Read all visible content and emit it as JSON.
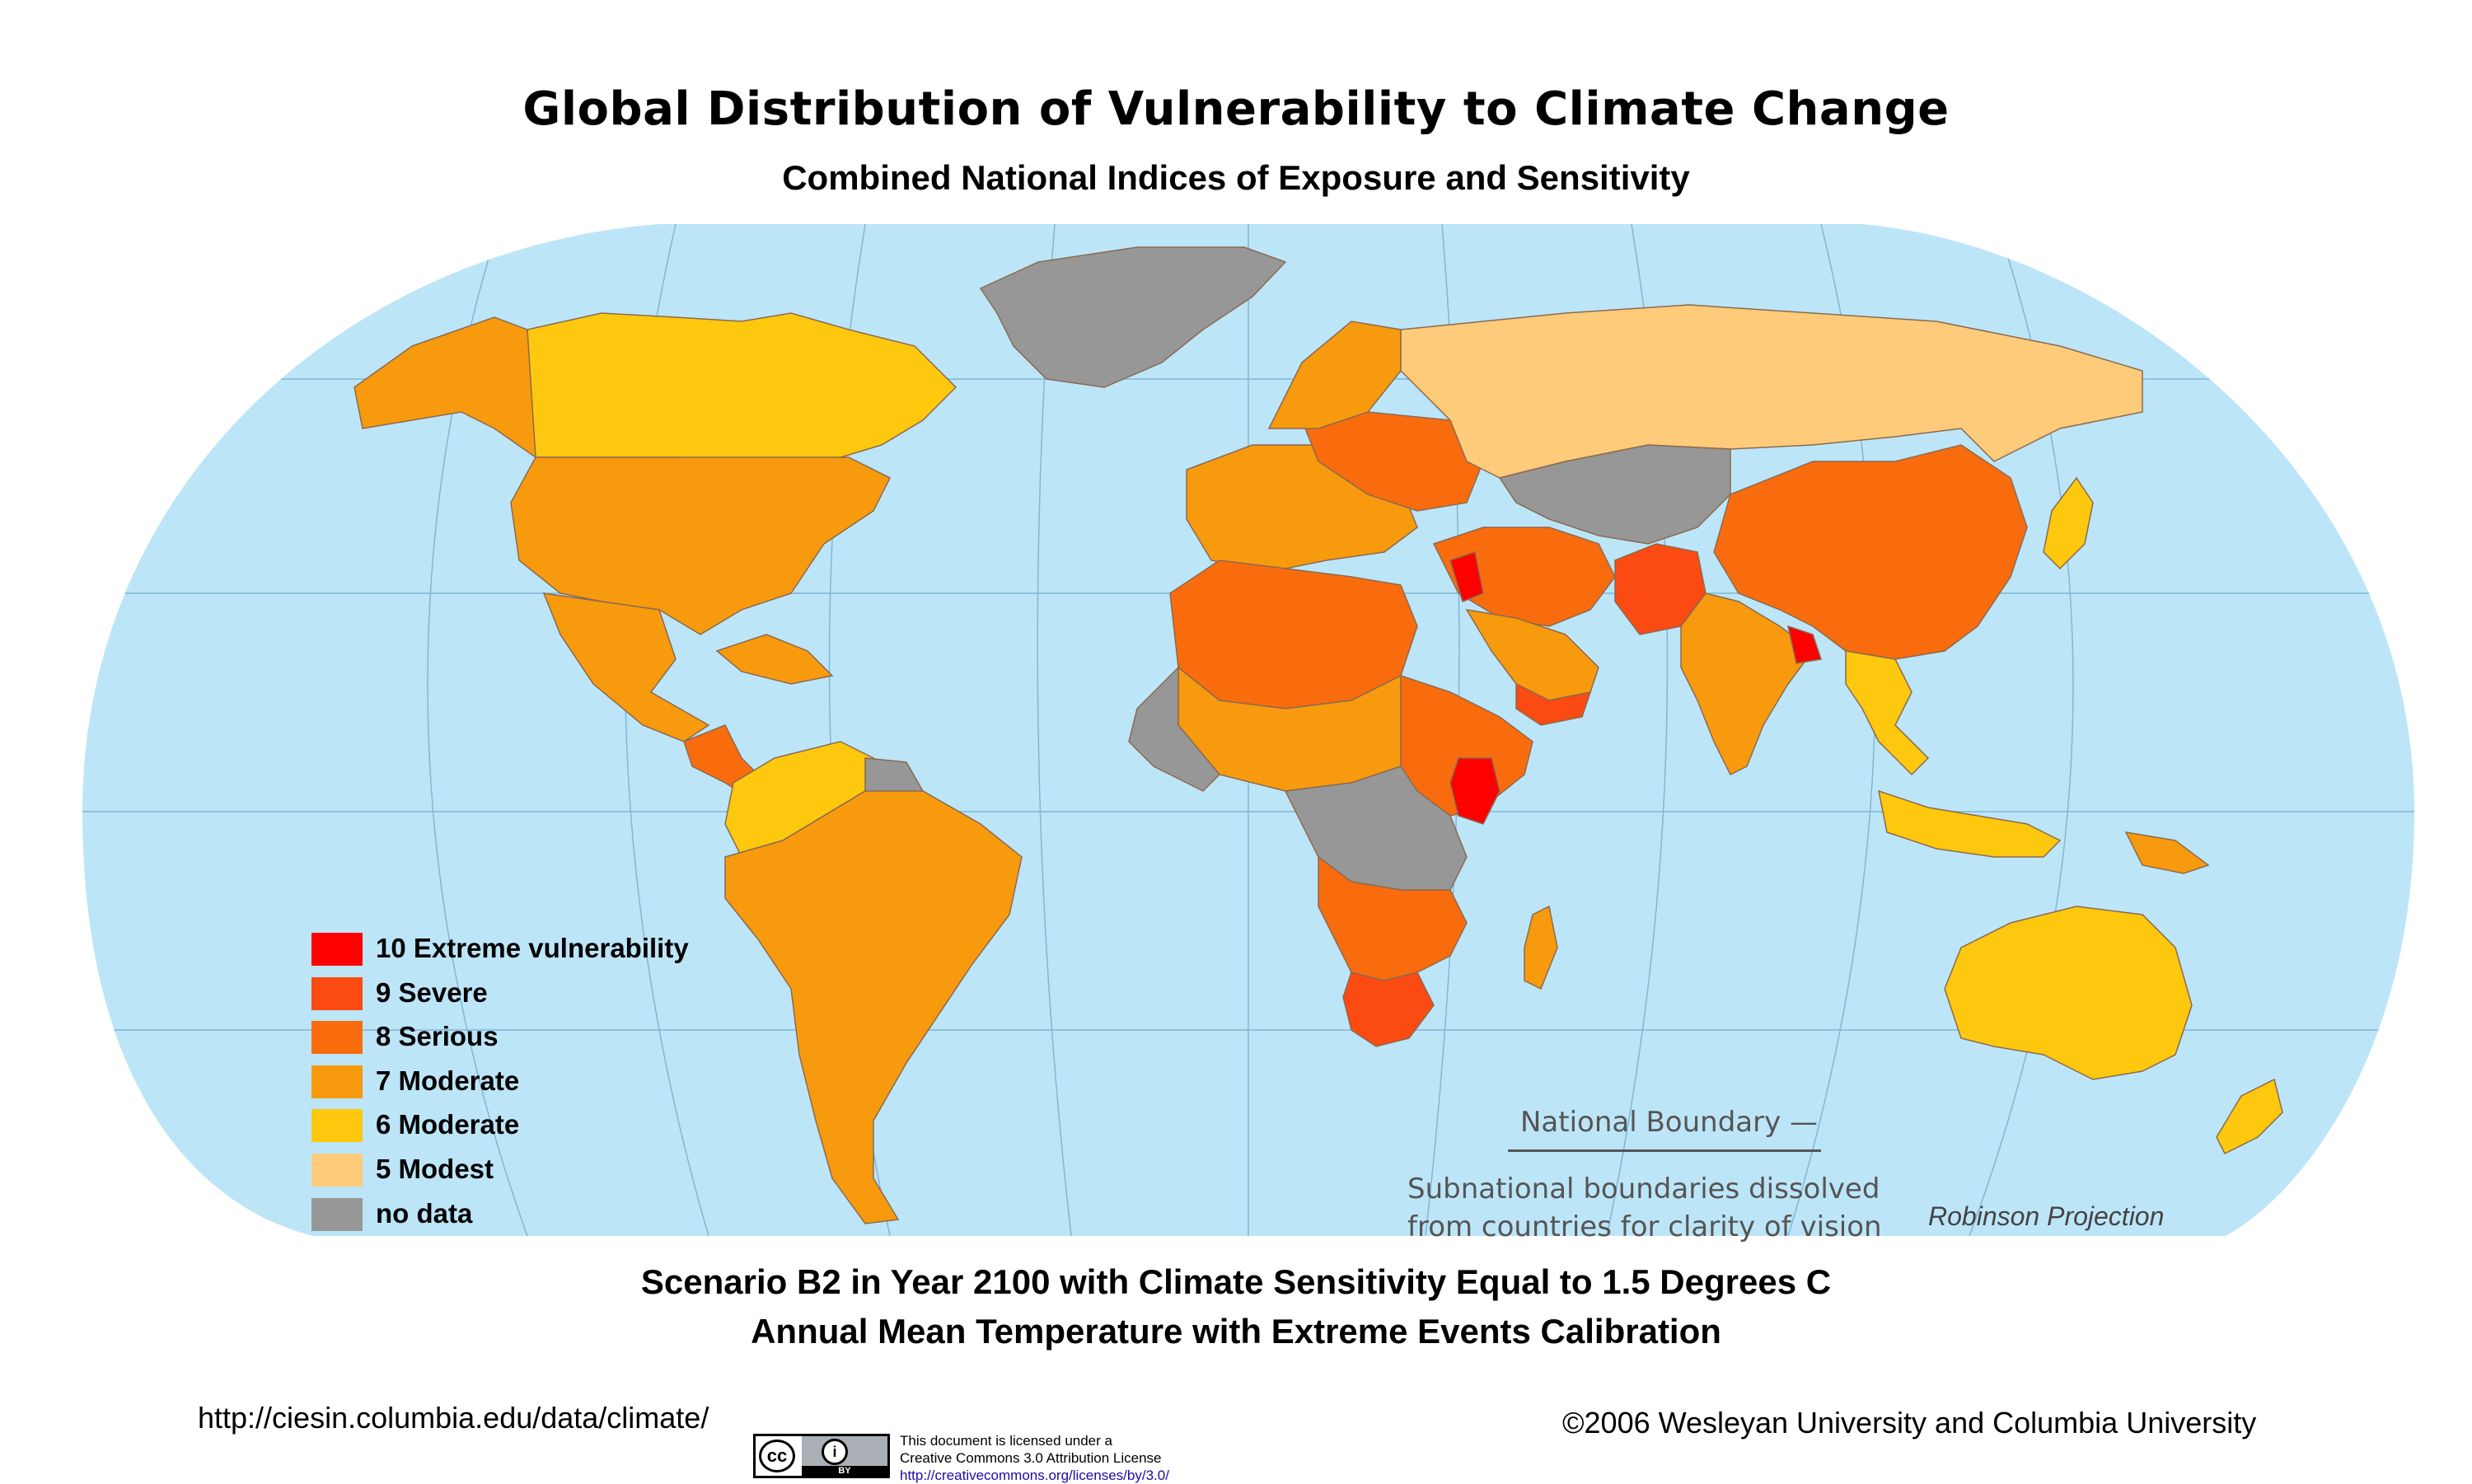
{
  "title": "Global Distribution of Vulnerability to Climate Change",
  "subtitle": "Combined National Indices of Exposure and Sensitivity",
  "colors": {
    "ocean": "#bde5f8",
    "graticule": "#7fb7d6",
    "v10": "#ff0000",
    "v9": "#fb4a12",
    "v8": "#f96c0e",
    "v7": "#f89a0e",
    "v6": "#fdc80d",
    "v5": "#fdcb7a",
    "nodata": "#979797"
  },
  "legend": [
    {
      "label": "10 Extreme vulnerability",
      "color": "#ff0000"
    },
    {
      "label": "9  Severe",
      "color": "#fb4a12"
    },
    {
      "label": "8  Serious",
      "color": "#f96c0e"
    },
    {
      "label": "7  Moderate",
      "color": "#f89a0e"
    },
    {
      "label": "6  Moderate",
      "color": "#fdc80d"
    },
    {
      "label": "5  Modest",
      "color": "#fdcb7a"
    },
    {
      "label": "no data",
      "color": "#979797"
    }
  ],
  "boundary_label": "National Boundary —",
  "boundary_note": [
    "Subnational boundaries dissolved",
    "from countries for clarity of vision"
  ],
  "projection": "Robinson Projection",
  "scenario": "Scenario B2 in Year 2100 with Climate Sensitivity Equal to 1.5 Degrees C",
  "calibration": "Annual Mean Temperature with Extreme Events Calibration",
  "url": "http://ciesin.columbia.edu/data/climate/",
  "copyright": "©2006 Wesleyan University and Columbia University",
  "license": {
    "line1": "This document is licensed under a",
    "line2": "Creative Commons 3.0 Attribution License",
    "link": "http://creativecommons.org/licenses/by/3.0/",
    "badge_cc": "cc",
    "badge_by": "BY"
  },
  "regions": [
    {
      "name": "greenland",
      "level": "nodata"
    },
    {
      "name": "canada",
      "level": "6"
    },
    {
      "name": "alaska",
      "level": "7"
    },
    {
      "name": "usa",
      "level": "7"
    },
    {
      "name": "mexico",
      "level": "7"
    },
    {
      "name": "central-america",
      "level": "8"
    },
    {
      "name": "caribbean",
      "level": "7"
    },
    {
      "name": "colombia-venezuela",
      "level": "6"
    },
    {
      "name": "guianas",
      "level": "nodata"
    },
    {
      "name": "south-america",
      "level": "7"
    },
    {
      "name": "europe",
      "level": "7"
    },
    {
      "name": "eastern-europe",
      "level": "8"
    },
    {
      "name": "scandinavia",
      "level": "7"
    },
    {
      "name": "russia",
      "level": "5"
    },
    {
      "name": "central-asia",
      "level": "nodata"
    },
    {
      "name": "north-africa",
      "level": "8"
    },
    {
      "name": "sahel",
      "level": "7"
    },
    {
      "name": "west-africa",
      "level": "nodata"
    },
    {
      "name": "middle-east",
      "level": "8"
    },
    {
      "name": "levant",
      "level": "10"
    },
    {
      "name": "arabia",
      "level": "7"
    },
    {
      "name": "yemen",
      "level": "9"
    },
    {
      "name": "pakistan",
      "level": "9"
    },
    {
      "name": "india",
      "level": "7"
    },
    {
      "name": "bangladesh",
      "level": "10"
    },
    {
      "name": "china",
      "level": "8"
    },
    {
      "name": "southeast-asia",
      "level": "6"
    },
    {
      "name": "japan",
      "level": "6"
    },
    {
      "name": "indonesia",
      "level": "6"
    },
    {
      "name": "papua",
      "level": "7"
    },
    {
      "name": "east-africa",
      "level": "8"
    },
    {
      "name": "kenya",
      "level": "10"
    },
    {
      "name": "central-africa",
      "level": "nodata"
    },
    {
      "name": "southern-africa",
      "level": "8"
    },
    {
      "name": "south-africa",
      "level": "9"
    },
    {
      "name": "madagascar",
      "level": "7"
    },
    {
      "name": "australia",
      "level": "6"
    },
    {
      "name": "new-zealand",
      "level": "6"
    }
  ]
}
